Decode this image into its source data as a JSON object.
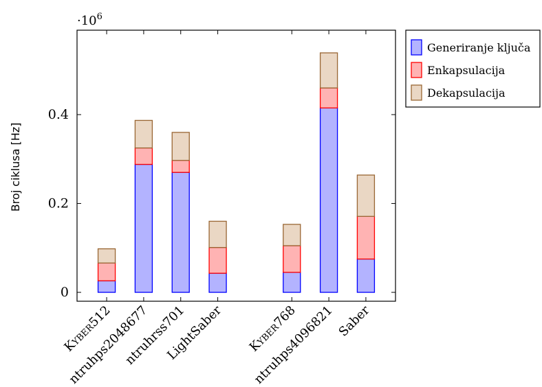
{
  "chart_data": {
    "type": "bar",
    "stacked": true,
    "categories": [
      "KYBER512",
      "ntruhps2048677",
      "ntruhrss701",
      "LightSaber",
      "KYBER768",
      "ntruhps4096821",
      "Saber"
    ],
    "category_display": [
      {
        "type": "smallcaps",
        "big": "K",
        "small": "YBER",
        "rest": "512"
      },
      {
        "type": "plain",
        "text": "ntruhps2048677"
      },
      {
        "type": "plain",
        "text": "ntruhrss701"
      },
      {
        "type": "plain",
        "text": "LightSaber"
      },
      {
        "type": "smallcaps",
        "big": "K",
        "small": "YBER",
        "rest": "768"
      },
      {
        "type": "plain",
        "text": "ntruhps4096821"
      },
      {
        "type": "plain",
        "text": "Saber"
      }
    ],
    "x_positions": [
      0,
      1,
      2,
      3,
      5,
      6,
      7
    ],
    "series": [
      {
        "name": "Generiranje ključa",
        "fill": "#b3b3ff",
        "stroke": "#0000ff",
        "values": [
          0.026,
          0.288,
          0.27,
          0.043,
          0.045,
          0.415,
          0.075
        ]
      },
      {
        "name": "Enkapsulacija",
        "fill": "#ffb3b3",
        "stroke": "#ff0000",
        "values": [
          0.04,
          0.037,
          0.027,
          0.058,
          0.06,
          0.045,
          0.096
        ]
      },
      {
        "name": "Dekapsulacija",
        "fill": "#ead7c4",
        "stroke": "#996633",
        "values": [
          0.032,
          0.062,
          0.063,
          0.059,
          0.048,
          0.079,
          0.093
        ]
      }
    ],
    "ylabel": "Broj ciklusa [Hz]",
    "y_multiplier": {
      "base": "·10",
      "exponent": "6"
    },
    "yticks": [
      "0",
      "0.2",
      "0.4"
    ],
    "ytick_values": [
      0,
      0.2,
      0.4
    ],
    "ylim": [
      -0.02,
      0.59
    ],
    "xlim": [
      -0.8,
      7.8
    ],
    "legend_position": "outside-top-right",
    "grid": false
  }
}
